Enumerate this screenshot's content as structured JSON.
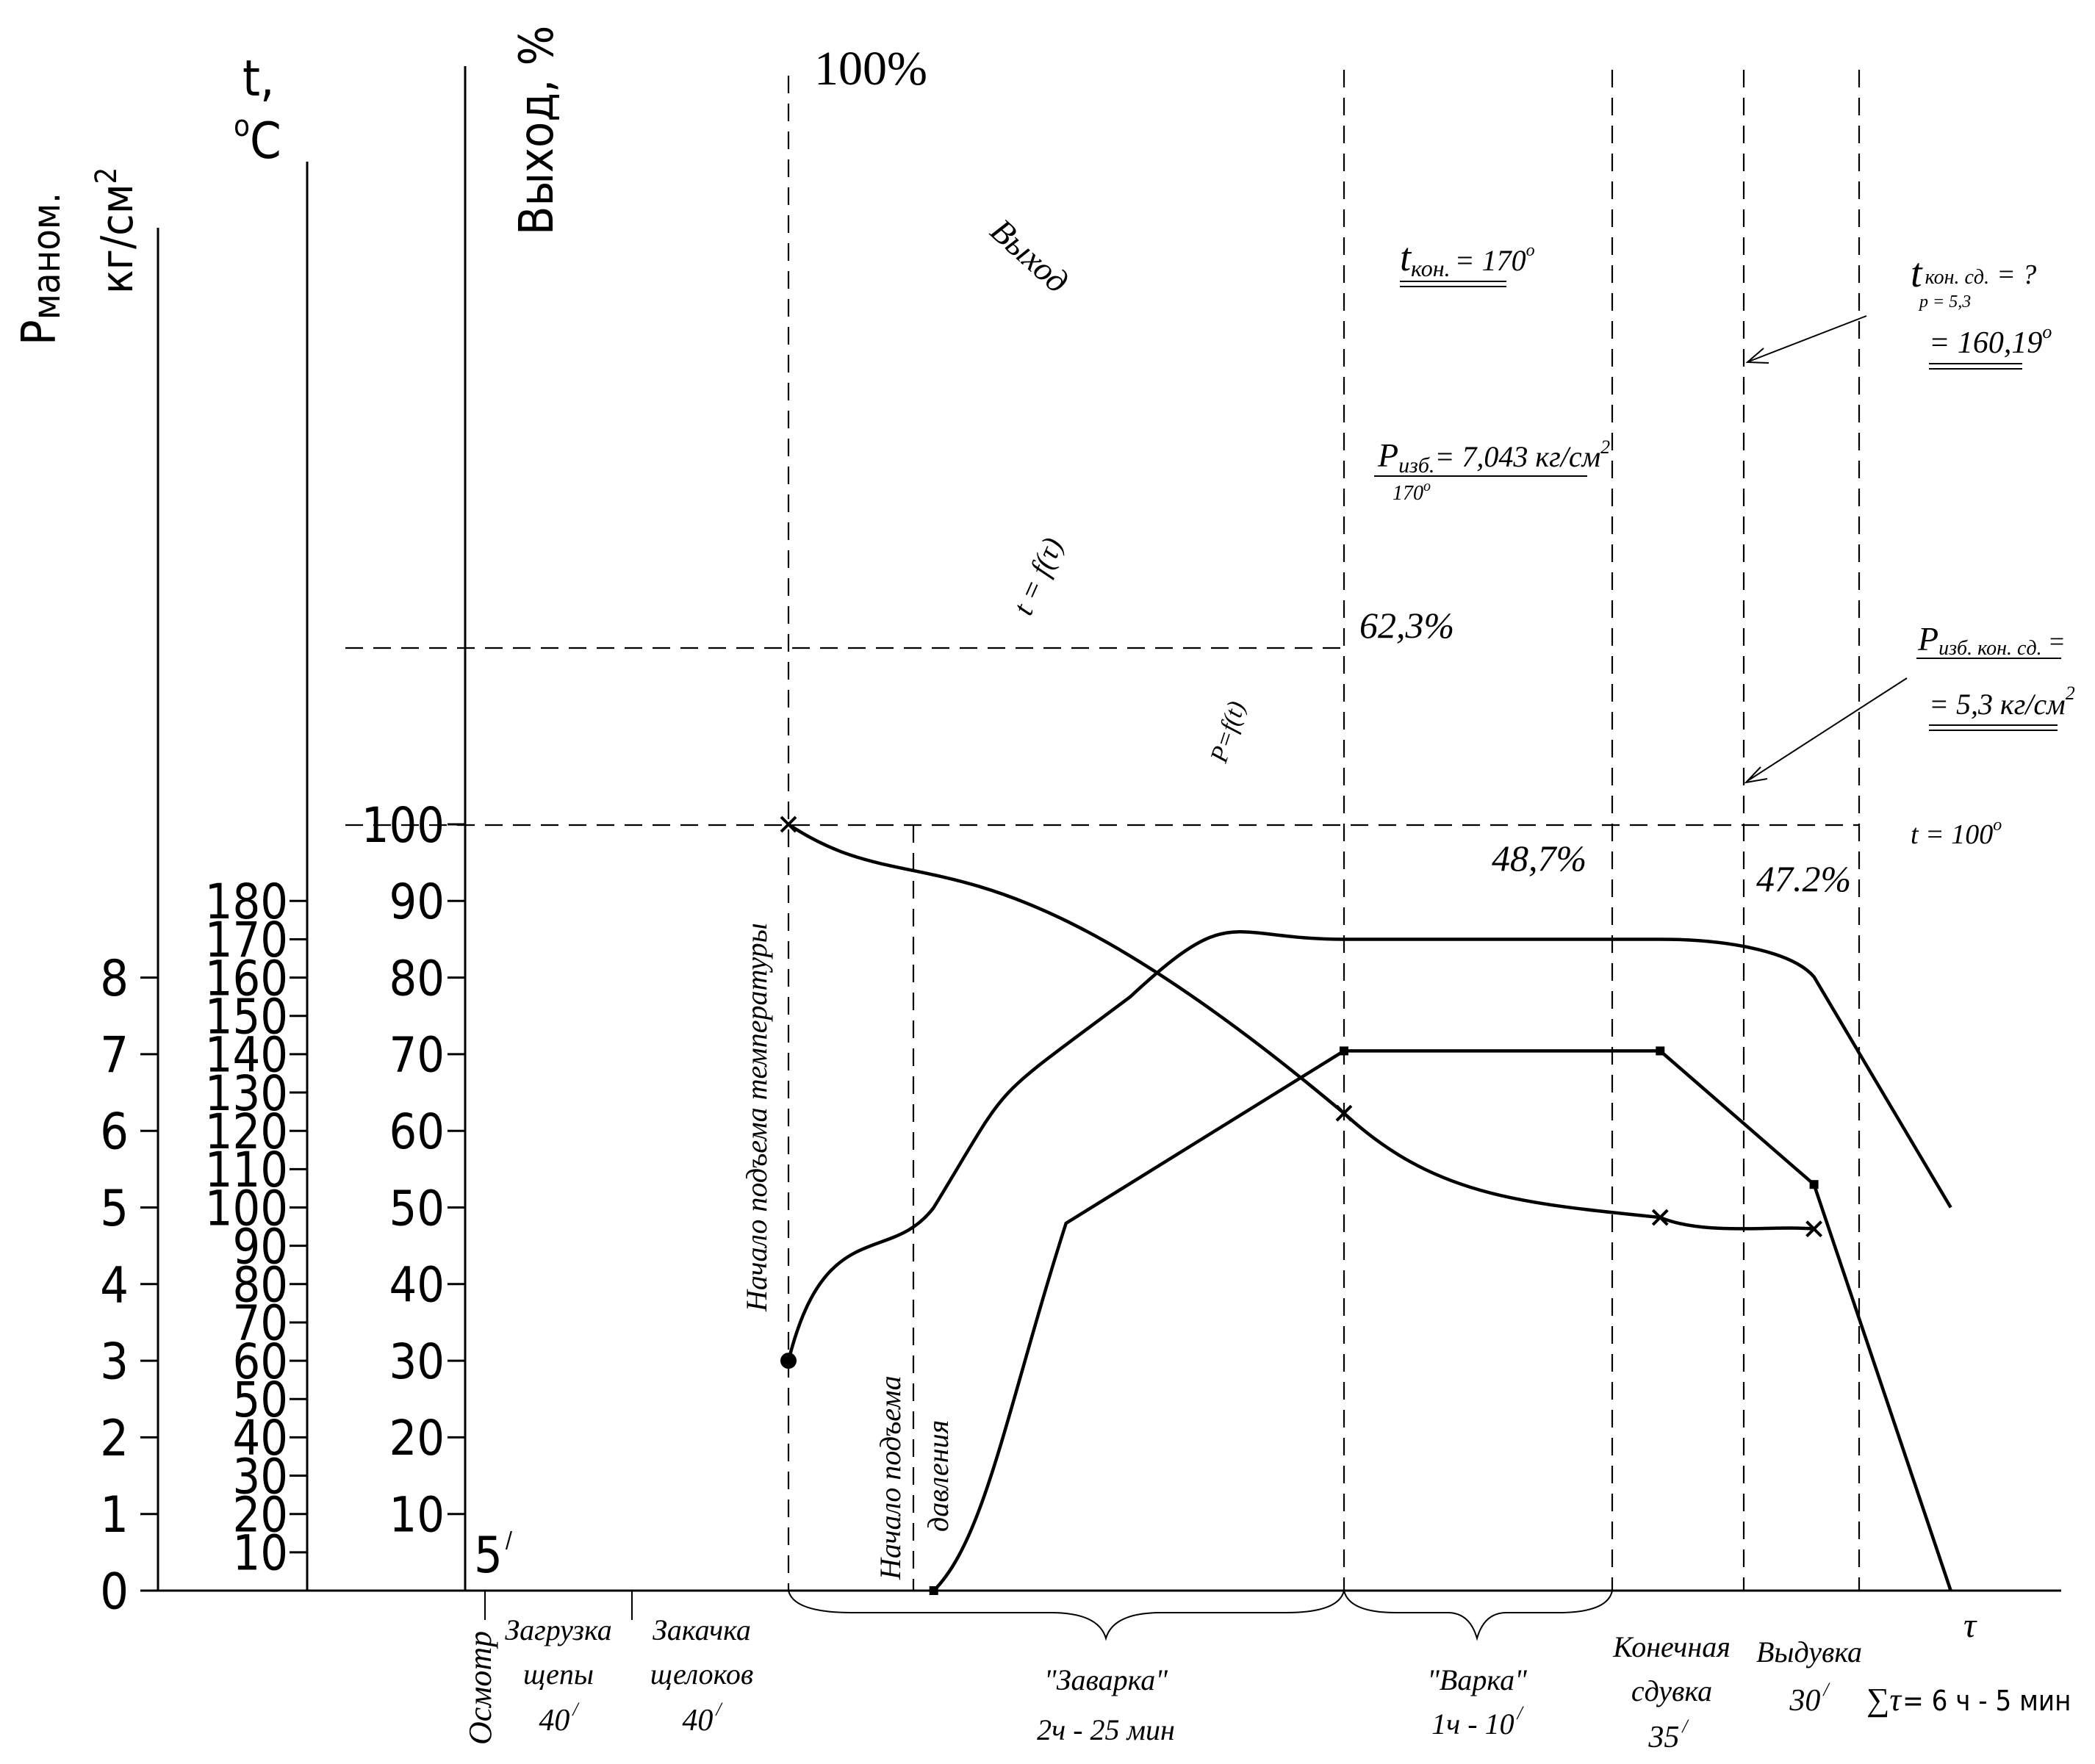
{
  "chart_data": {
    "type": "line",
    "axes": {
      "pressure": {
        "label_main": "Р",
        "label_sub": "маном.",
        "label_unit": "кг/см",
        "label_sup": "2",
        "ticks": [
          "0",
          "1",
          "2",
          "3",
          "4",
          "5",
          "6",
          "7",
          "8"
        ]
      },
      "temperature": {
        "label": "t,",
        "label_unit": "C",
        "label_sup": "o",
        "ticks": [
          "10",
          "20",
          "30",
          "40",
          "50",
          "60",
          "70",
          "80",
          "90",
          "100",
          "110",
          "120",
          "130",
          "140",
          "150",
          "160",
          "170",
          "180"
        ]
      },
      "yield": {
        "label": "Выход, %",
        "ticks": [
          "10",
          "20",
          "30",
          "40",
          "50",
          "60",
          "70",
          "80",
          "90",
          "100"
        ]
      },
      "time": {
        "label": "τ"
      }
    },
    "series": [
      {
        "name": "Выход",
        "units": "%",
        "points": [
          [
            0,
            100
          ],
          [
            6.5,
            62.3
          ],
          [
            10.2,
            48.7
          ],
          [
            12.0,
            47.2
          ]
        ],
        "markers": "x"
      },
      {
        "name": "t = f(τ)",
        "units": "°C",
        "points": [
          [
            0,
            60
          ],
          [
            1.7,
            100
          ],
          [
            4.0,
            155
          ],
          [
            6.5,
            170
          ],
          [
            10.2,
            170
          ],
          [
            12.0,
            160.19
          ],
          [
            13.6,
            100
          ]
        ]
      },
      {
        "name": "P = f(t)",
        "units": "кг/см²",
        "points": [
          [
            1.7,
            0
          ],
          [
            6.5,
            7.043
          ],
          [
            10.2,
            7.043
          ],
          [
            12.0,
            5.3
          ],
          [
            13.6,
            0
          ]
        ]
      }
    ],
    "reference_lines": [
      {
        "value": 62.3,
        "units": "%"
      },
      {
        "value": 100,
        "units": "°C"
      }
    ]
  },
  "labels": {
    "yield_start": "100%",
    "yield_mid": "62,3%",
    "yield_after_cook": "48,7%",
    "yield_end": "47.2%",
    "yield_curve": "Выход",
    "temp_curve": "t = f(τ)",
    "press_curve": "P=f(t)",
    "temp_start": "Начало подъема температуры",
    "press_start_1": "Начало подъема",
    "press_start_2": "давления",
    "t_final": "t",
    "t_final_sub": "кон.",
    "t_final_val": "= 170",
    "t_final_sup": "о",
    "p_cook": "P",
    "p_cook_sub": "изб.",
    "p_cook_val": "= 7,043 кг/см",
    "p_cook_sup": "2",
    "p_cook_temp": "170",
    "p_cook_temp_sup": "о",
    "t_end_blow": "t",
    "t_end_blow_sub": "кон. сд.",
    "t_end_blow_q": "= ?",
    "t_end_blow_p": "p = 5,3",
    "t_end_blow_val": "= 160,19",
    "t_end_blow_sup": "о",
    "p_end_blow": "P",
    "p_end_blow_sub": "изб. кон. сд.",
    "p_end_blow_eq": "=",
    "p_end_blow_val": "= 5,3 кг/см",
    "p_end_blow_sup": "2",
    "t_100": "t = 100",
    "t_100_sup": "о",
    "five_min": "5",
    "five_min_sup": "/"
  },
  "stages": [
    {
      "name": "Осмотр",
      "time": ""
    },
    {
      "name": "Загрузка щепы",
      "time": "40"
    },
    {
      "name": "Закачка щелоков",
      "time": "40"
    },
    {
      "name": "\"Заварка\"",
      "time": "2ч - 25 мин"
    },
    {
      "name": "\"Варка\"",
      "time": "1ч - 10"
    },
    {
      "name": "Конечная сдувка",
      "time": "35"
    },
    {
      "name": "Выдувка",
      "time": "30"
    }
  ],
  "stage_lines": {
    "load_1": "Загрузка",
    "load_2": "щепы",
    "load_t": "40",
    "pump_1": "Закачка",
    "pump_2": "щелоков",
    "pump_t": "40",
    "inspect": "Осмотр",
    "brew_1": "\"Заварка\"",
    "brew_2": "2ч - 25 мин",
    "cook_1": "\"Варка\"",
    "cook_2": "1ч - 10",
    "final_1": "Конечная",
    "final_2": "сдувка",
    "final_t": "35",
    "blow_1": "Выдувка",
    "blow_t": "30",
    "minute_mark": "/"
  },
  "total_time": {
    "sigma": "∑τ",
    "value": "= 6 ч - 5 мин"
  }
}
